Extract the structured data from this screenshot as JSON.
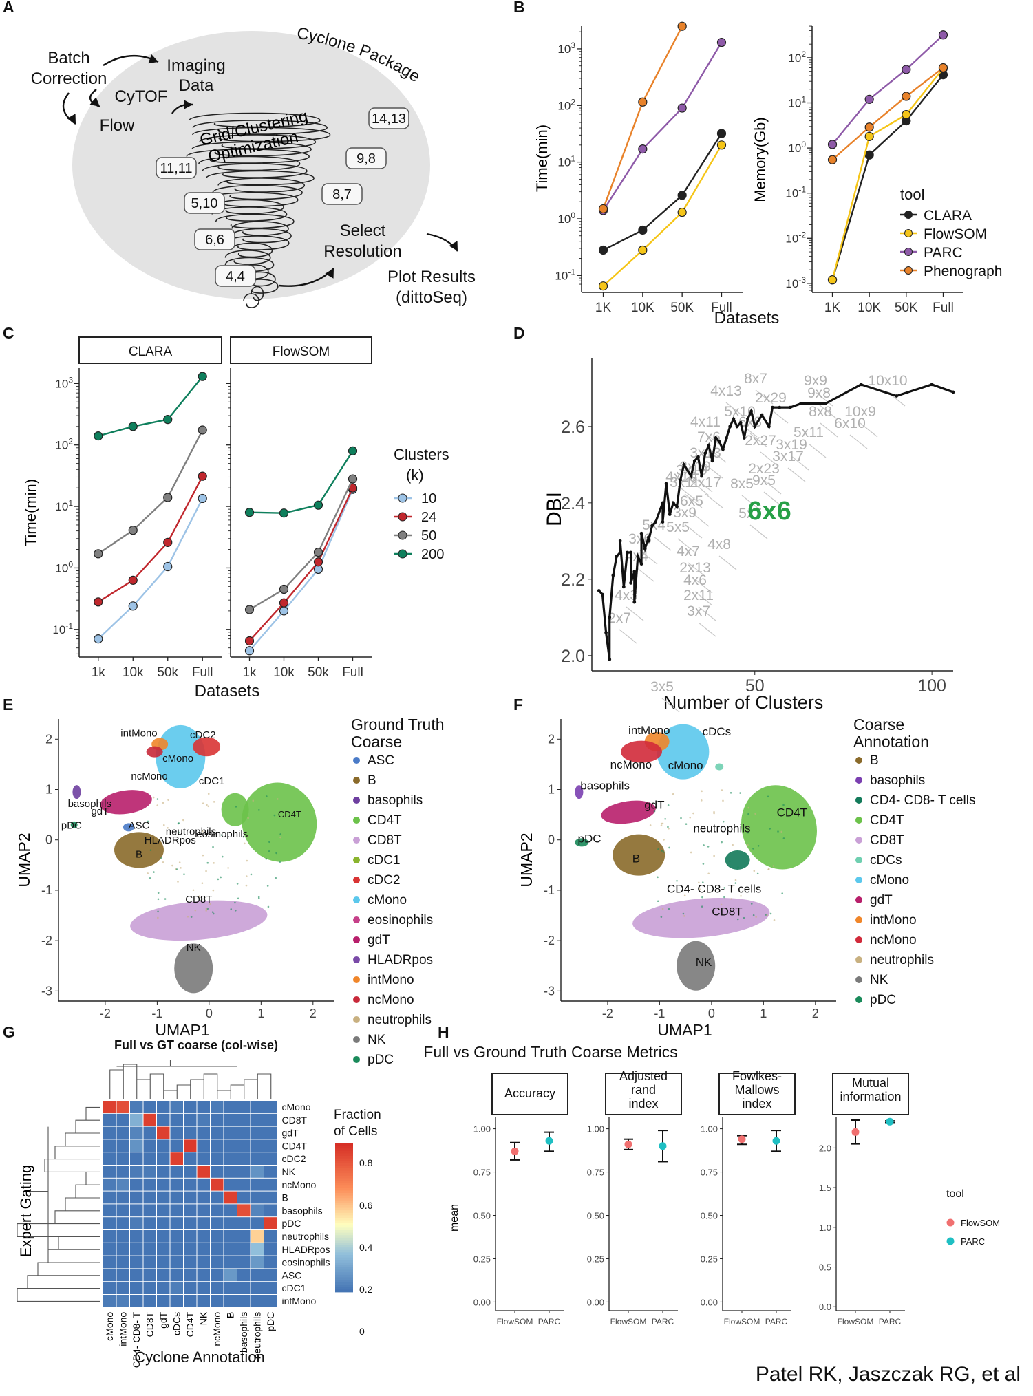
{
  "credit": "Patel RK, Jaszczak RG, et al",
  "panels": {
    "A": {
      "label": "A",
      "title": "Cyclone Package",
      "steps": [
        "Batch",
        "Correction",
        "Imaging",
        "Data",
        "CyTOF",
        "Flow",
        "Grid/Clustering",
        "Optimization",
        "Select",
        "Resolution",
        "Plot Results",
        "(dittoSeq)"
      ],
      "grids": [
        "14,13",
        "9,8",
        "11,11",
        "8,7",
        "5,10",
        "6,6",
        "4,4"
      ]
    },
    "B": {
      "label": "B"
    },
    "C": {
      "label": "C"
    },
    "D": {
      "label": "D"
    },
    "E": {
      "label": "E"
    },
    "F": {
      "label": "F"
    },
    "G": {
      "label": "G"
    },
    "H": {
      "label": "H"
    }
  },
  "chart_data": [
    {
      "id": "B-time",
      "type": "line",
      "categories": [
        "1K",
        "10K",
        "50K",
        "Full"
      ],
      "ylabel": "Time(min)",
      "yscale": "log",
      "ylim_log10": [
        -1.3,
        3.4
      ],
      "yticks": [
        "10^-1",
        "10^0",
        "10^1",
        "10^2",
        "10^3"
      ],
      "series": [
        {
          "name": "CLARA",
          "color": "#222222",
          "values": [
            0.28,
            0.63,
            2.6,
            32
          ]
        },
        {
          "name": "FlowSOM",
          "color": "#F5C518",
          "values": [
            0.065,
            0.28,
            1.3,
            20
          ]
        },
        {
          "name": "PARC",
          "color": "#8E5AA8",
          "values": [
            1.4,
            17,
            90,
            1300
          ]
        },
        {
          "name": "Phenograph",
          "color": "#E8822A",
          "values": [
            1.5,
            115,
            2500,
            null
          ]
        }
      ]
    },
    {
      "id": "B-memory",
      "type": "line",
      "categories": [
        "1K",
        "10K",
        "50K",
        "Full"
      ],
      "xlabel": "Datasets",
      "ylabel": "Memory(Gb)",
      "yscale": "log",
      "ylim_log10": [
        -3.2,
        2.7
      ],
      "yticks": [
        "10^-3",
        "10^-2",
        "10^-1",
        "10^0",
        "10^1",
        "10^2"
      ],
      "legend_title": "tool",
      "series": [
        {
          "name": "CLARA",
          "color": "#222222",
          "values": [
            0.0012,
            0.7,
            4,
            42
          ]
        },
        {
          "name": "FlowSOM",
          "color": "#F5C518",
          "values": [
            0.0012,
            1.8,
            5.5,
            58
          ]
        },
        {
          "name": "PARC",
          "color": "#8E5AA8",
          "values": [
            1.2,
            12,
            55,
            320
          ]
        },
        {
          "name": "Phenograph",
          "color": "#E8822A",
          "values": [
            0.55,
            2.9,
            14,
            60
          ]
        }
      ]
    },
    {
      "id": "C",
      "type": "line",
      "facets": [
        "CLARA",
        "FlowSOM"
      ],
      "categories": [
        "1k",
        "10k",
        "50k",
        "Full"
      ],
      "xlabel": "Datasets",
      "ylabel": "Time(min)",
      "yscale": "log",
      "ylim_log10": [
        -1.45,
        3.25
      ],
      "yticks": [
        "10^-1",
        "10^0",
        "10^1",
        "10^2",
        "10^3"
      ],
      "legend_title": [
        "Clusters",
        "(k)"
      ],
      "series": [
        {
          "name": "10",
          "color": "#9DC3E6",
          "clara": [
            0.07,
            0.24,
            1.05,
            13.5
          ],
          "flowsom": [
            0.045,
            0.2,
            0.95,
            19
          ]
        },
        {
          "name": "24",
          "color": "#C0272D",
          "clara": [
            0.28,
            0.63,
            2.6,
            31
          ],
          "flowsom": [
            0.065,
            0.27,
            1.25,
            20
          ]
        },
        {
          "name": "50",
          "color": "#808080",
          "clara": [
            1.7,
            4.1,
            14,
            175
          ],
          "flowsom": [
            0.21,
            0.45,
            1.8,
            28
          ]
        },
        {
          "name": "200",
          "color": "#0E7F5C",
          "clara": [
            140,
            200,
            260,
            1300
          ],
          "flowsom": [
            8,
            7.8,
            10.5,
            80
          ]
        }
      ]
    },
    {
      "id": "D",
      "type": "line",
      "xlabel": "Number of Clusters",
      "ylabel": "DBI",
      "xlim": [
        4,
        106
      ],
      "ylim": [
        1.96,
        2.78
      ],
      "xticks": [
        "50",
        "100"
      ],
      "yticks": [
        "2.0",
        "2.2",
        "2.4",
        "2.6"
      ],
      "highlight": "6x6",
      "x": [
        6,
        7,
        8,
        9,
        9,
        10,
        11,
        12,
        12,
        13,
        14,
        15,
        15,
        16,
        16,
        17,
        18,
        18,
        19,
        20,
        20,
        21,
        22,
        24,
        24,
        25,
        26,
        27,
        28,
        29,
        30,
        32,
        33,
        34,
        35,
        36,
        37,
        38,
        39,
        40,
        41,
        42,
        43,
        44,
        45,
        46,
        47,
        48,
        49,
        50,
        52,
        54,
        55,
        57,
        60,
        63,
        70,
        80,
        90,
        100,
        106
      ],
      "y": [
        2.17,
        2.16,
        2.06,
        1.99,
        2.1,
        2.21,
        2.26,
        2.27,
        2.3,
        2.18,
        2.27,
        2.27,
        2.19,
        2.22,
        2.14,
        2.26,
        2.24,
        2.32,
        2.28,
        2.31,
        2.3,
        2.34,
        2.35,
        2.4,
        2.35,
        2.45,
        2.37,
        2.4,
        2.39,
        2.46,
        2.5,
        2.47,
        2.51,
        2.52,
        2.47,
        2.53,
        2.55,
        2.51,
        2.57,
        2.56,
        2.54,
        2.57,
        2.6,
        2.62,
        2.6,
        2.61,
        2.57,
        2.62,
        2.64,
        2.6,
        2.63,
        2.6,
        2.65,
        2.65,
        2.65,
        2.66,
        2.66,
        2.71,
        2.68,
        2.71,
        2.69
      ],
      "annotations": [
        "9x9",
        "10x10",
        "8x7",
        "4x13",
        "2x29",
        "9x8",
        "8x8",
        "10x9",
        "5x10",
        "6x8",
        "4x11",
        "6x10",
        "7x6",
        "5x11",
        "3x13",
        "2x27",
        "3x19",
        "3x17",
        "2x19",
        "2x23",
        "3x11",
        "9x5",
        "2x17",
        "8x5",
        "6x5",
        "3x9",
        "5x4",
        "5x5",
        "5x7",
        "3x6",
        "4x8",
        "4x7",
        "4x4",
        "2x13",
        "4x6",
        "2x11",
        "4x3",
        "3x7",
        "2x7",
        "3x5",
        "3x10",
        "4x10"
      ]
    },
    {
      "id": "E",
      "type": "scatter",
      "xlabel": "UMAP1",
      "ylabel": "UMAP2",
      "xlim": [
        -2.9,
        2.4
      ],
      "ylim": [
        -3.2,
        2.4
      ],
      "xticks": [
        "-2",
        "-1",
        "0",
        "1",
        "2"
      ],
      "yticks": [
        "-3",
        "-2",
        "-1",
        "0",
        "1",
        "2"
      ],
      "legend_title": [
        "Ground Truth",
        "Coarse"
      ],
      "legend": [
        {
          "name": "ASC",
          "color": "#4A7BC8"
        },
        {
          "name": "B",
          "color": "#8A6A2A"
        },
        {
          "name": "basophils",
          "color": "#6E3FA0"
        },
        {
          "name": "CD4T",
          "color": "#6CC24A"
        },
        {
          "name": "CD8T",
          "color": "#C9A0D6"
        },
        {
          "name": "cDC1",
          "color": "#8AB42E"
        },
        {
          "name": "cDC2",
          "color": "#D93434"
        },
        {
          "name": "cMono",
          "color": "#5BC8EC"
        },
        {
          "name": "eosinophils",
          "color": "#C64089"
        },
        {
          "name": "gdT",
          "color": "#B81F6B"
        },
        {
          "name": "HLADRpos",
          "color": "#7A4AA8"
        },
        {
          "name": "intMono",
          "color": "#F0862A"
        },
        {
          "name": "ncMono",
          "color": "#C8293A"
        },
        {
          "name": "neutrophils",
          "color": "#C8B080"
        },
        {
          "name": "NK",
          "color": "#7A7A7A"
        },
        {
          "name": "pDC",
          "color": "#1A8A5A"
        }
      ],
      "labels": [
        "intMono",
        "cDC2",
        "cMono",
        "ncMono",
        "cDC1",
        "basophils",
        "gdT",
        "CD4T",
        "ASC",
        "neutrophils",
        "pDC",
        "HLADRpos",
        "eosinophils",
        "B",
        "CD8T",
        "NK"
      ]
    },
    {
      "id": "F",
      "type": "scatter",
      "xlabel": "UMAP1",
      "ylabel": "UMAP2",
      "xlim": [
        -2.9,
        2.4
      ],
      "ylim": [
        -3.2,
        2.4
      ],
      "xticks": [
        "-2",
        "-1",
        "0",
        "1",
        "2"
      ],
      "yticks": [
        "-3",
        "-2",
        "-1",
        "0",
        "1",
        "2"
      ],
      "legend_title": [
        "Coarse",
        "Annotation"
      ],
      "legend": [
        {
          "name": "B",
          "color": "#8A6A2A"
        },
        {
          "name": "basophils",
          "color": "#7A3FB0"
        },
        {
          "name": "CD4- CD8- T cells",
          "color": "#137A5A"
        },
        {
          "name": "CD4T",
          "color": "#6CC24A"
        },
        {
          "name": "CD8T",
          "color": "#C9A0D6"
        },
        {
          "name": "cDCs",
          "color": "#6FCFB0"
        },
        {
          "name": "cMono",
          "color": "#5BC8EC"
        },
        {
          "name": "gdT",
          "color": "#B81F6B"
        },
        {
          "name": "intMono",
          "color": "#F0862A"
        },
        {
          "name": "ncMono",
          "color": "#D12A3A"
        },
        {
          "name": "neutrophils",
          "color": "#C8B080"
        },
        {
          "name": "NK",
          "color": "#7A7A7A"
        },
        {
          "name": "pDC",
          "color": "#1A8A5A"
        }
      ],
      "labels": [
        "intMono",
        "cDCs",
        "ncMono",
        "cMono",
        "basophils",
        "gdT",
        "CD4T",
        "neutrophils",
        "pDC",
        "B",
        "CD4- CD8- T cells",
        "CD8T",
        "NK"
      ]
    },
    {
      "id": "G",
      "type": "heatmap",
      "title": "Full vs GT coarse (col-wise)",
      "xlabel": "Cyclone Annotation",
      "ylabel": "Expert Gating",
      "legend_title": [
        "Fraction",
        "of Cells"
      ],
      "legend_ticks": [
        "0.8",
        "0.6",
        "0.4",
        "0.2",
        "0"
      ],
      "cols": [
        "cMono",
        "intMono",
        "CD4- CD8- T",
        "CD8T",
        "gdT",
        "cDCs",
        "CD4T",
        "NK",
        "ncMono",
        "B",
        "basophils",
        "neutrophils",
        "pDC"
      ],
      "rows": [
        "cMono",
        "CD8T",
        "gdT",
        "CD4T",
        "cDC2",
        "NK",
        "ncMono",
        "B",
        "basophils",
        "pDC",
        "neutrophils",
        "HLADRpos",
        "eosinophils",
        "ASC",
        "cDC1",
        "intMono"
      ],
      "values": [
        [
          0.95,
          0.9,
          0.02,
          0.0,
          0.0,
          0.02,
          0.0,
          0.0,
          0.02,
          0.0,
          0.0,
          0.0,
          0.0
        ],
        [
          0.0,
          0.0,
          0.2,
          0.95,
          0.0,
          0.0,
          0.0,
          0.02,
          0.0,
          0.0,
          0.0,
          0.0,
          0.0
        ],
        [
          0.0,
          0.0,
          0.05,
          0.0,
          0.95,
          0.0,
          0.0,
          0.0,
          0.0,
          0.0,
          0.0,
          0.0,
          0.0
        ],
        [
          0.0,
          0.0,
          0.1,
          0.0,
          0.0,
          0.0,
          0.97,
          0.0,
          0.0,
          0.0,
          0.0,
          0.0,
          0.0
        ],
        [
          0.0,
          0.0,
          0.0,
          0.0,
          0.0,
          0.95,
          0.0,
          0.0,
          0.0,
          0.0,
          0.0,
          0.0,
          0.0
        ],
        [
          0.0,
          0.0,
          0.02,
          0.02,
          0.0,
          0.0,
          0.0,
          0.95,
          0.0,
          0.0,
          0.0,
          0.1,
          0.0
        ],
        [
          0.02,
          0.05,
          0.0,
          0.0,
          0.0,
          0.0,
          0.0,
          0.0,
          0.95,
          0.0,
          0.0,
          0.0,
          0.0
        ],
        [
          0.0,
          0.0,
          0.0,
          0.0,
          0.0,
          0.0,
          0.0,
          0.0,
          0.0,
          0.95,
          0.0,
          0.0,
          0.0
        ],
        [
          0.0,
          0.0,
          0.0,
          0.0,
          0.0,
          0.0,
          0.0,
          0.0,
          0.0,
          0.0,
          0.9,
          0.05,
          0.0
        ],
        [
          0.0,
          0.0,
          0.02,
          0.0,
          0.0,
          0.0,
          0.0,
          0.0,
          0.0,
          0.0,
          0.0,
          0.0,
          0.95
        ],
        [
          0.0,
          0.0,
          0.0,
          0.0,
          0.0,
          0.0,
          0.0,
          0.0,
          0.0,
          0.0,
          0.0,
          0.55,
          0.0
        ],
        [
          0.0,
          0.0,
          0.0,
          0.0,
          0.0,
          0.0,
          0.0,
          0.0,
          0.0,
          0.0,
          0.0,
          0.25,
          0.0
        ],
        [
          0.0,
          0.0,
          0.0,
          0.0,
          0.0,
          0.0,
          0.0,
          0.0,
          0.0,
          0.0,
          0.0,
          0.12,
          0.0
        ],
        [
          0.0,
          0.0,
          0.0,
          0.0,
          0.0,
          0.0,
          0.0,
          0.0,
          0.0,
          0.12,
          0.0,
          0.0,
          0.0
        ],
        [
          0.0,
          0.0,
          0.0,
          0.0,
          0.0,
          0.03,
          0.0,
          0.0,
          0.0,
          0.0,
          0.0,
          0.0,
          0.0
        ],
        [
          0.02,
          0.03,
          0.0,
          0.0,
          0.0,
          0.0,
          0.0,
          0.0,
          0.0,
          0.0,
          0.0,
          0.0,
          0.0
        ]
      ]
    },
    {
      "id": "H",
      "type": "scatter",
      "title": "Full vs Ground Truth Coarse Metrics",
      "ylabel": "mean",
      "legend_title": "tool",
      "legend": [
        {
          "name": "FlowSOM",
          "color": "#F07070"
        },
        {
          "name": "PARC",
          "color": "#1FBFC3"
        }
      ],
      "facets": [
        {
          "title": [
            "Accuracy"
          ],
          "ylim": [
            -0.05,
            1.05
          ],
          "yticks": [
            "0.00",
            "0.25",
            "0.50",
            "0.75",
            "1.00"
          ],
          "FlowSOM": {
            "mean": 0.87,
            "lo": 0.82,
            "hi": 0.92
          },
          "PARC": {
            "mean": 0.93,
            "lo": 0.87,
            "hi": 0.98
          }
        },
        {
          "title": [
            "Adjusted",
            "rand",
            "index"
          ],
          "ylim": [
            -0.05,
            1.05
          ],
          "yticks": [
            "0.00",
            "0.25",
            "0.50",
            "0.75",
            "1.00"
          ],
          "FlowSOM": {
            "mean": 0.91,
            "lo": 0.88,
            "hi": 0.94
          },
          "PARC": {
            "mean": 0.9,
            "lo": 0.81,
            "hi": 0.99
          }
        },
        {
          "title": [
            "Fowlkes-",
            "Mallows",
            "index"
          ],
          "ylim": [
            -0.05,
            1.05
          ],
          "yticks": [
            "0.00",
            "0.25",
            "0.50",
            "0.75",
            "1.00"
          ],
          "FlowSOM": {
            "mean": 0.94,
            "lo": 0.91,
            "hi": 0.96
          },
          "PARC": {
            "mean": 0.93,
            "lo": 0.87,
            "hi": 0.99
          }
        },
        {
          "title": [
            "Mutual",
            "information"
          ],
          "ylim": [
            -0.05,
            2.35
          ],
          "yticks": [
            "0.0",
            "0.5",
            "1.0",
            "1.5",
            "2.0"
          ],
          "FlowSOM": {
            "mean": 2.2,
            "lo": 2.05,
            "hi": 2.35
          },
          "PARC": {
            "mean": 2.33,
            "lo": 2.32,
            "hi": 2.34
          }
        }
      ],
      "categories": [
        "FlowSOM",
        "PARC"
      ]
    }
  ]
}
